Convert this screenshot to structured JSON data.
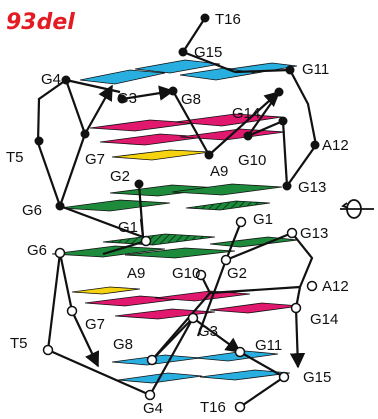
{
  "title": "93del",
  "colors": {
    "accent": "#e31b23",
    "cyan": "#29aee0",
    "magenta": "#e0186e",
    "yellow": "#f5d40f",
    "green": "#1e8a3c"
  },
  "top": {
    "labels": {
      "t16": "T16",
      "g15": "G15",
      "g4": "G4",
      "g11": "G11",
      "g3": "G3",
      "g8": "G8",
      "g14": "G14",
      "t5": "T5",
      "a12": "A12",
      "g7": "G7",
      "g10": "G10",
      "a9": "A9",
      "g2": "G2",
      "g13": "G13",
      "g6": "G6",
      "g1": "G1"
    }
  },
  "bottom": {
    "labels": {
      "g1": "G1",
      "g6": "G6",
      "g13": "G13",
      "a9": "A9",
      "g10": "G10",
      "g2": "G2",
      "a12": "A12",
      "g7": "G7",
      "g3": "G3",
      "g14": "G14",
      "t5": "T5",
      "g8": "G8",
      "g11": "G11",
      "g15": "G15",
      "g4": "G4",
      "t16": "T16"
    }
  }
}
